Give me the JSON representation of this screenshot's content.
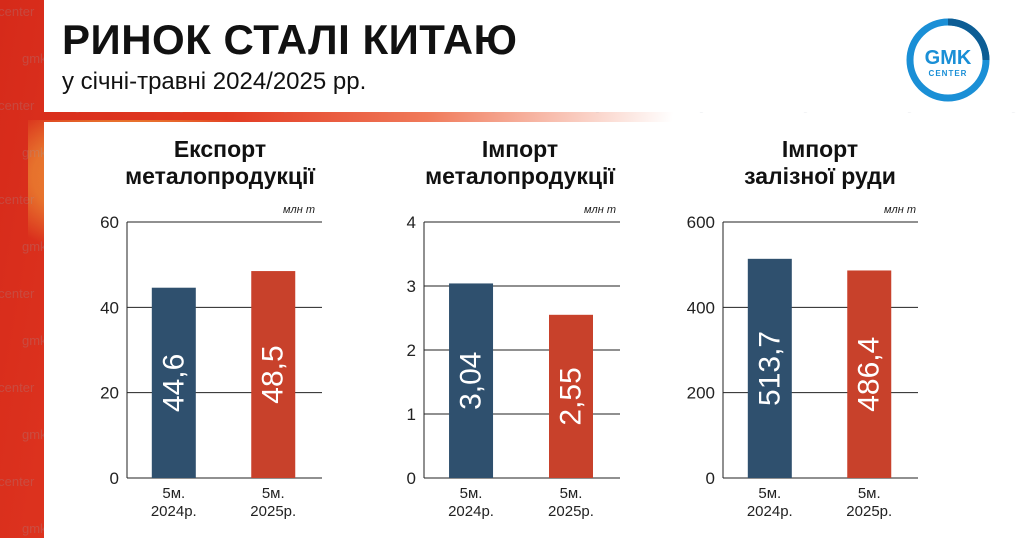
{
  "header": {
    "title": "РИНОК СТАЛІ КИТАЮ",
    "subtitle": "у січні-травні 2024/2025 рр."
  },
  "logo": {
    "line1": "GMK",
    "line2": "CENTER",
    "color": "#1a8fd6"
  },
  "watermark": "gmk.center",
  "colors": {
    "series_2024": "#2f506e",
    "series_2025": "#c8412b",
    "grid": "#222222"
  },
  "chart_data": [
    {
      "type": "bar",
      "title_line1": "Експорт",
      "title_line2": "металопродукції",
      "unit": "млн т",
      "categories": [
        "5м.\n2024р.",
        "5м.\n2025р."
      ],
      "values": [
        44.6,
        48.5
      ],
      "value_labels": [
        "44,6",
        "48,5"
      ],
      "ylim": [
        0,
        60
      ],
      "yticks": [
        0,
        20,
        40,
        60
      ]
    },
    {
      "type": "bar",
      "title_line1": "Імпорт",
      "title_line2": "металопродукції",
      "unit": "млн т",
      "categories": [
        "5м.\n2024р.",
        "5м.\n2025р."
      ],
      "values": [
        3.04,
        2.55
      ],
      "value_labels": [
        "3,04",
        "2,55"
      ],
      "ylim": [
        0,
        4
      ],
      "yticks": [
        0,
        1,
        2,
        3,
        4
      ]
    },
    {
      "type": "bar",
      "title_line1": "Імпорт",
      "title_line2": "залізної руди",
      "unit": "млн т",
      "categories": [
        "5м.\n2024р.",
        "5м.\n2025р."
      ],
      "values": [
        513.7,
        486.4
      ],
      "value_labels": [
        "513,7",
        "486,4"
      ],
      "ylim": [
        0,
        600
      ],
      "yticks": [
        0,
        200,
        400,
        600
      ]
    }
  ]
}
